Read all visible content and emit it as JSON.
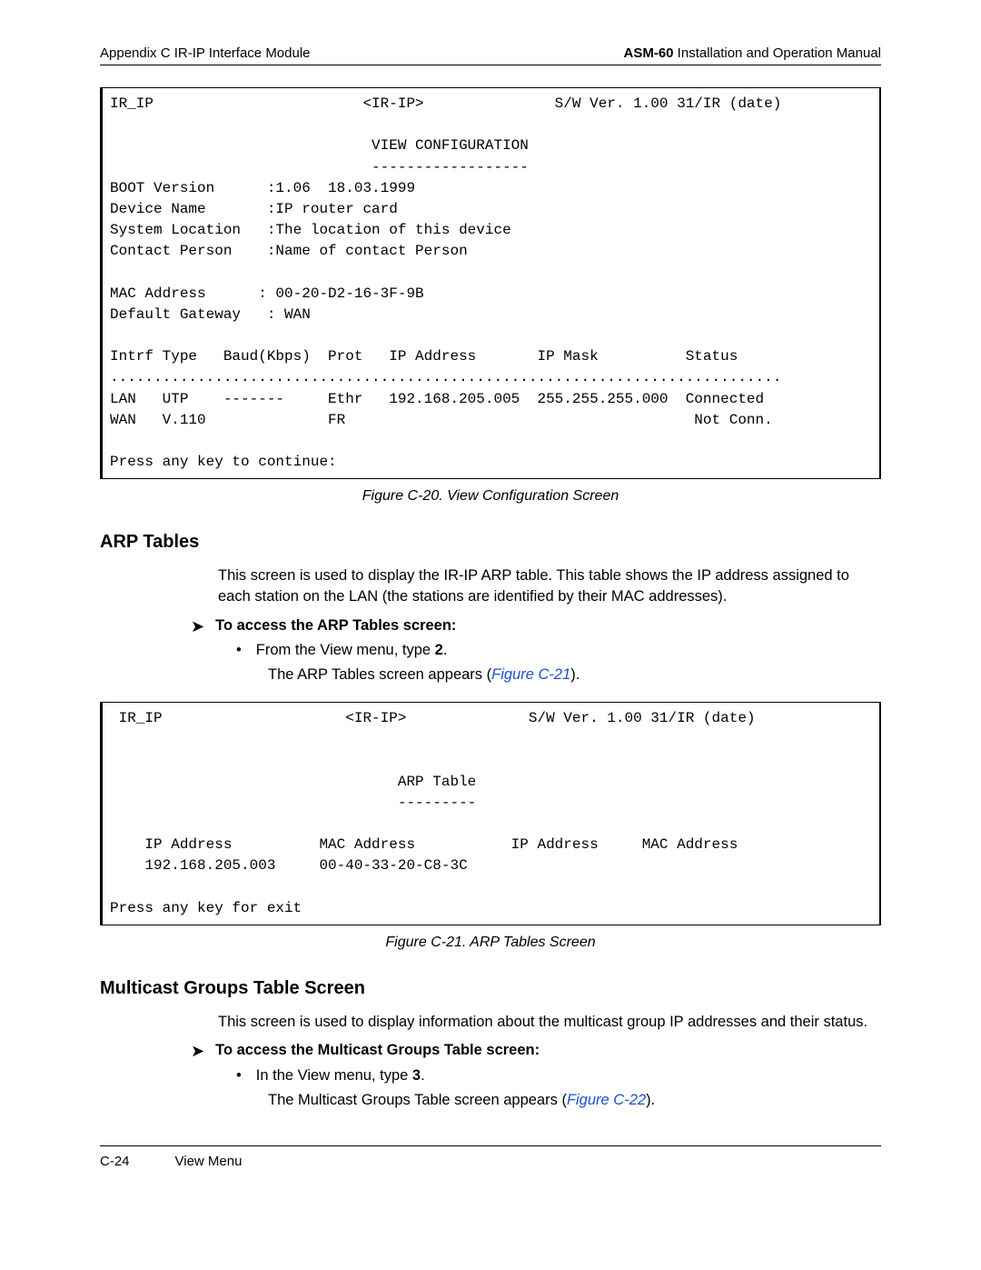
{
  "header": {
    "left": "Appendix C  IR-IP Interface Module",
    "right_bold": "ASM-60",
    "right_rest": " Installation and Operation Manual"
  },
  "terminal1": {
    "line1": "IR_IP                        <IR-IP>               S/W Ver. 1.00 31/IR (date)",
    "line2": "                              VIEW CONFIGURATION",
    "line3": "                              ------------------",
    "line4": "BOOT Version      :1.06  18.03.1999",
    "line5": "Device Name       :IP router card",
    "line6": "System Location   :The location of this device",
    "line7": "Contact Person    :Name of contact Person",
    "line8": "",
    "line9": "MAC Address      : 00-20-D2-16-3F-9B",
    "line10": "Default Gateway   : WAN",
    "line11": "",
    "line12": "Intrf Type   Baud(Kbps)  Prot   IP Address       IP Mask          Status",
    "line13": ".............................................................................",
    "line14": "LAN   UTP    -------     Ethr   192.168.205.005  255.255.255.000  Connected",
    "line15": "WAN   V.110              FR                                        Not Conn.",
    "line16": "",
    "line17": "Press any key to continue:"
  },
  "caption1": "Figure C-20.  View Configuration Screen",
  "section1": {
    "title": "ARP Tables",
    "para": "This screen is used to display the IR-IP ARP table. This table shows the IP address assigned to each station on the LAN (the stations are identified by their MAC addresses).",
    "proc": "To access the ARP Tables screen:",
    "bullet_pre": "From the View menu, type ",
    "bullet_bold": "2",
    "bullet_post": ".",
    "sub_pre": "The ARP Tables screen appears (",
    "sub_link": "Figure C-21",
    "sub_post": ")."
  },
  "terminal2": {
    "line1": " IR_IP                     <IR-IP>              S/W Ver. 1.00 31/IR (date)",
    "line2": "",
    "line3": "",
    "line4": "                                 ARP Table",
    "line5": "                                 ---------",
    "line6": "",
    "line7": "    IP Address          MAC Address           IP Address     MAC Address",
    "line8": "    192.168.205.003     00-40-33-20-C8-3C",
    "line9": "",
    "line10": "Press any key for exit"
  },
  "caption2": "Figure C-21.  ARP Tables Screen",
  "section2": {
    "title": "Multicast Groups Table Screen",
    "para": "This screen is used to display information about the multicast group IP addresses and their status.",
    "proc": "To access the Multicast Groups Table screen:",
    "bullet_pre": "In the View menu, type ",
    "bullet_bold": "3",
    "bullet_post": ".",
    "sub_pre": "The Multicast Groups Table screen appears (",
    "sub_link": "Figure C-22",
    "sub_post": ")."
  },
  "footer": {
    "page": "C-24",
    "section": "View Menu"
  }
}
